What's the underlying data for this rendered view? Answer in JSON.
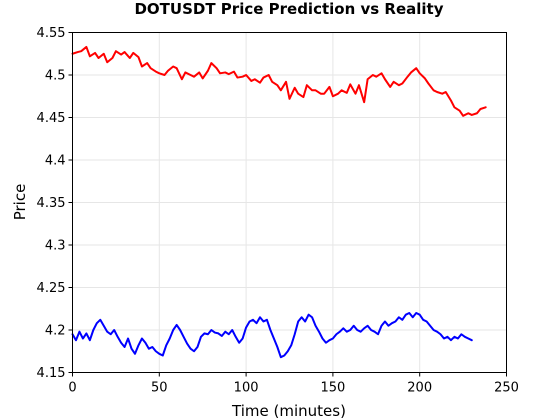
{
  "chart_data": {
    "type": "line",
    "title": "DOTUSDT Price Prediction vs Reality",
    "xlabel": "Time (minutes)",
    "ylabel": "Price",
    "xlim": [
      0,
      250
    ],
    "ylim": [
      4.15,
      4.55
    ],
    "grid": true,
    "legend": "none",
    "xticks": [
      0,
      50,
      100,
      150,
      200,
      250
    ],
    "xtick_labels": [
      "0",
      "50",
      "100",
      "150",
      "200",
      "250"
    ],
    "yticks": [
      4.15,
      4.2,
      4.25,
      4.3,
      4.35,
      4.4,
      4.45,
      4.5,
      4.55
    ],
    "ytick_labels": [
      "4.15",
      "4.2",
      "4.25",
      "4.3",
      "4.35",
      "4.4",
      "4.45",
      "4.5",
      "4.55"
    ],
    "series": [
      {
        "color": "#ff0000",
        "x": [
          0,
          3,
          5,
          8,
          10,
          13,
          15,
          18,
          20,
          23,
          25,
          28,
          30,
          33,
          35,
          38,
          40,
          43,
          45,
          48,
          50,
          53,
          55,
          58,
          60,
          63,
          65,
          68,
          70,
          73,
          75,
          78,
          80,
          83,
          85,
          88,
          90,
          93,
          95,
          98,
          100,
          103,
          105,
          108,
          110,
          113,
          115,
          118,
          120,
          123,
          125,
          128,
          130,
          133,
          135,
          138,
          140,
          143,
          145,
          148,
          150,
          153,
          155,
          158,
          160,
          163,
          165,
          168,
          170,
          173,
          175,
          178,
          180,
          183,
          185,
          188,
          190,
          193,
          195,
          198,
          200,
          203,
          205,
          208,
          210,
          213,
          215,
          218,
          220,
          223,
          225,
          228,
          230,
          233,
          235,
          238
        ],
        "y": [
          4.525,
          4.527,
          4.528,
          4.533,
          4.522,
          4.526,
          4.52,
          4.525,
          4.515,
          4.52,
          4.528,
          4.524,
          4.527,
          4.52,
          4.526,
          4.521,
          4.51,
          4.514,
          4.508,
          4.504,
          4.502,
          4.5,
          4.505,
          4.51,
          4.508,
          4.495,
          4.503,
          4.5,
          4.498,
          4.503,
          4.496,
          4.505,
          4.514,
          4.508,
          4.502,
          4.503,
          4.501,
          4.504,
          4.497,
          4.498,
          4.5,
          4.493,
          4.495,
          4.491,
          4.497,
          4.5,
          4.492,
          4.488,
          4.482,
          4.492,
          4.472,
          4.485,
          4.478,
          4.474,
          4.488,
          4.482,
          4.482,
          4.478,
          4.478,
          4.486,
          4.475,
          4.478,
          4.482,
          4.479,
          4.489,
          4.478,
          4.488,
          4.468,
          4.495,
          4.5,
          4.498,
          4.502,
          4.495,
          4.486,
          4.492,
          4.488,
          4.49,
          4.498,
          4.503,
          4.508,
          4.502,
          4.496,
          4.49,
          4.482,
          4.48,
          4.478,
          4.48,
          4.47,
          4.462,
          4.458,
          4.452,
          4.455,
          4.453,
          4.455,
          4.46,
          4.462
        ]
      },
      {
        "color": "#0000ff",
        "x": [
          0,
          2,
          4,
          6,
          8,
          10,
          12,
          14,
          16,
          18,
          20,
          22,
          24,
          26,
          28,
          30,
          32,
          34,
          36,
          38,
          40,
          42,
          44,
          46,
          48,
          50,
          52,
          54,
          56,
          58,
          60,
          62,
          64,
          66,
          68,
          70,
          72,
          74,
          76,
          78,
          80,
          82,
          84,
          86,
          88,
          90,
          92,
          94,
          96,
          98,
          100,
          102,
          104,
          106,
          108,
          110,
          112,
          114,
          116,
          118,
          120,
          122,
          124,
          126,
          128,
          130,
          132,
          134,
          136,
          138,
          140,
          142,
          144,
          146,
          148,
          150,
          152,
          154,
          156,
          158,
          160,
          162,
          164,
          166,
          168,
          170,
          172,
          174,
          176,
          178,
          180,
          182,
          184,
          186,
          188,
          190,
          192,
          194,
          196,
          198,
          200,
          202,
          204,
          206,
          208,
          210,
          212,
          214,
          216,
          218,
          220,
          222,
          224,
          226,
          228,
          230
        ],
        "y": [
          4.195,
          4.188,
          4.198,
          4.19,
          4.196,
          4.188,
          4.2,
          4.208,
          4.212,
          4.205,
          4.198,
          4.195,
          4.2,
          4.192,
          4.185,
          4.18,
          4.19,
          4.178,
          4.172,
          4.182,
          4.19,
          4.185,
          4.178,
          4.18,
          4.175,
          4.172,
          4.17,
          4.182,
          4.19,
          4.2,
          4.206,
          4.2,
          4.192,
          4.184,
          4.178,
          4.175,
          4.18,
          4.192,
          4.196,
          4.195,
          4.2,
          4.197,
          4.196,
          4.193,
          4.198,
          4.195,
          4.2,
          4.192,
          4.185,
          4.19,
          4.203,
          4.21,
          4.212,
          4.208,
          4.215,
          4.21,
          4.212,
          4.2,
          4.19,
          4.18,
          4.168,
          4.17,
          4.175,
          4.182,
          4.195,
          4.21,
          4.215,
          4.21,
          4.218,
          4.215,
          4.205,
          4.198,
          4.19,
          4.185,
          4.188,
          4.19,
          4.195,
          4.198,
          4.202,
          4.198,
          4.2,
          4.205,
          4.2,
          4.198,
          4.202,
          4.205,
          4.2,
          4.198,
          4.195,
          4.205,
          4.21,
          4.205,
          4.208,
          4.21,
          4.215,
          4.212,
          4.218,
          4.22,
          4.215,
          4.22,
          4.218,
          4.212,
          4.21,
          4.205,
          4.2,
          4.198,
          4.195,
          4.19,
          4.192,
          4.188,
          4.192,
          4.19,
          4.195,
          4.192,
          4.19,
          4.188
        ]
      }
    ]
  }
}
